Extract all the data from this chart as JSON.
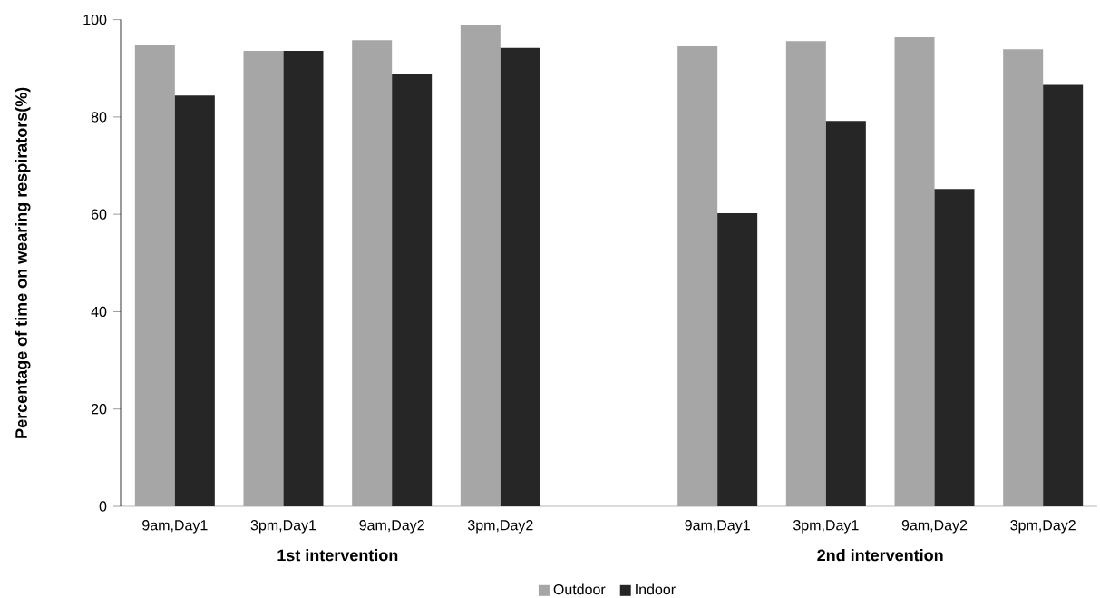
{
  "chart_data": {
    "type": "bar",
    "ylabel": "Percentage of time on wearing respirators(%)",
    "categories": [
      "9am,Day1",
      "3pm,Day1",
      "9am,Day2",
      "3pm,Day2",
      null,
      "9am,Day1",
      "3pm,Day1",
      "9am,Day2",
      "3pm,Day2"
    ],
    "series": [
      {
        "name": "Outdoor",
        "color": "#a6a6a6",
        "values": [
          94.7,
          93.6,
          95.8,
          98.8,
          null,
          94.5,
          95.6,
          96.4,
          93.9
        ]
      },
      {
        "name": "Indoor",
        "color": "#262626",
        "values": [
          84.4,
          93.6,
          88.9,
          94.2,
          null,
          60.2,
          79.2,
          65.2,
          86.6
        ]
      }
    ],
    "annotations": [
      "1st intervention",
      "2nd intervention"
    ],
    "ylim": [
      0,
      100
    ],
    "yticks": [
      0,
      20,
      40,
      60,
      80,
      100
    ],
    "grid": false,
    "legend": "bottom"
  }
}
